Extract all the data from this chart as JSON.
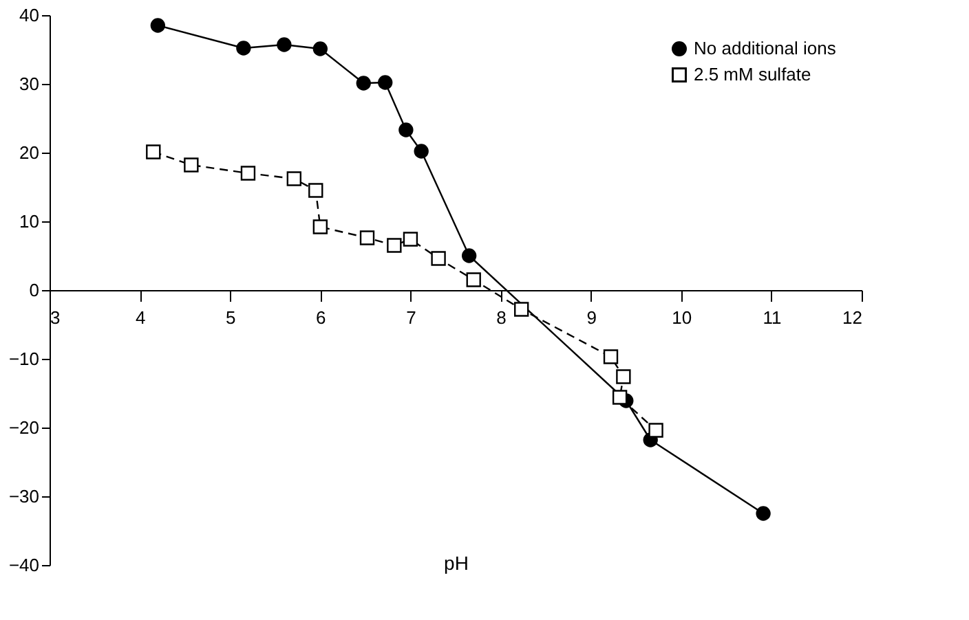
{
  "chart_data": {
    "type": "line",
    "xlabel": "pH",
    "xlim": [
      3,
      12
    ],
    "xticks": [
      3,
      4,
      5,
      6,
      7,
      8,
      9,
      10,
      11,
      12
    ],
    "ylim": [
      -40,
      40
    ],
    "yticks": [
      -40,
      -30,
      -20,
      -10,
      0,
      10,
      20,
      30,
      40
    ],
    "grid": false,
    "legend": "top right",
    "series": [
      {
        "name": "No additional ions",
        "color": "#000000",
        "marker": "circle",
        "line_style": "solid",
        "x": [
          4.2,
          5.15,
          5.6,
          6.0,
          6.48,
          6.72,
          6.95,
          7.12,
          7.65,
          9.39,
          9.66,
          10.91
        ],
        "values": [
          38.5,
          35.2,
          35.7,
          35.1,
          30.1,
          30.2,
          23.3,
          20.2,
          5.0,
          -16.1,
          -21.8,
          -32.5
        ]
      },
      {
        "name": "2.5 mM sulfate",
        "color": "#000000",
        "marker": "square",
        "line_style": "dashed",
        "x": [
          4.15,
          4.57,
          5.2,
          5.71,
          5.95,
          6.0,
          6.52,
          6.82,
          7.0,
          7.31,
          7.7,
          8.23,
          9.22,
          9.36,
          9.32,
          9.72
        ],
        "values": [
          20.1,
          18.2,
          17.0,
          16.2,
          14.5,
          9.2,
          7.6,
          6.5,
          7.4,
          4.6,
          1.5,
          -2.8,
          -9.7,
          -12.6,
          -15.6,
          -20.4
        ]
      }
    ]
  }
}
